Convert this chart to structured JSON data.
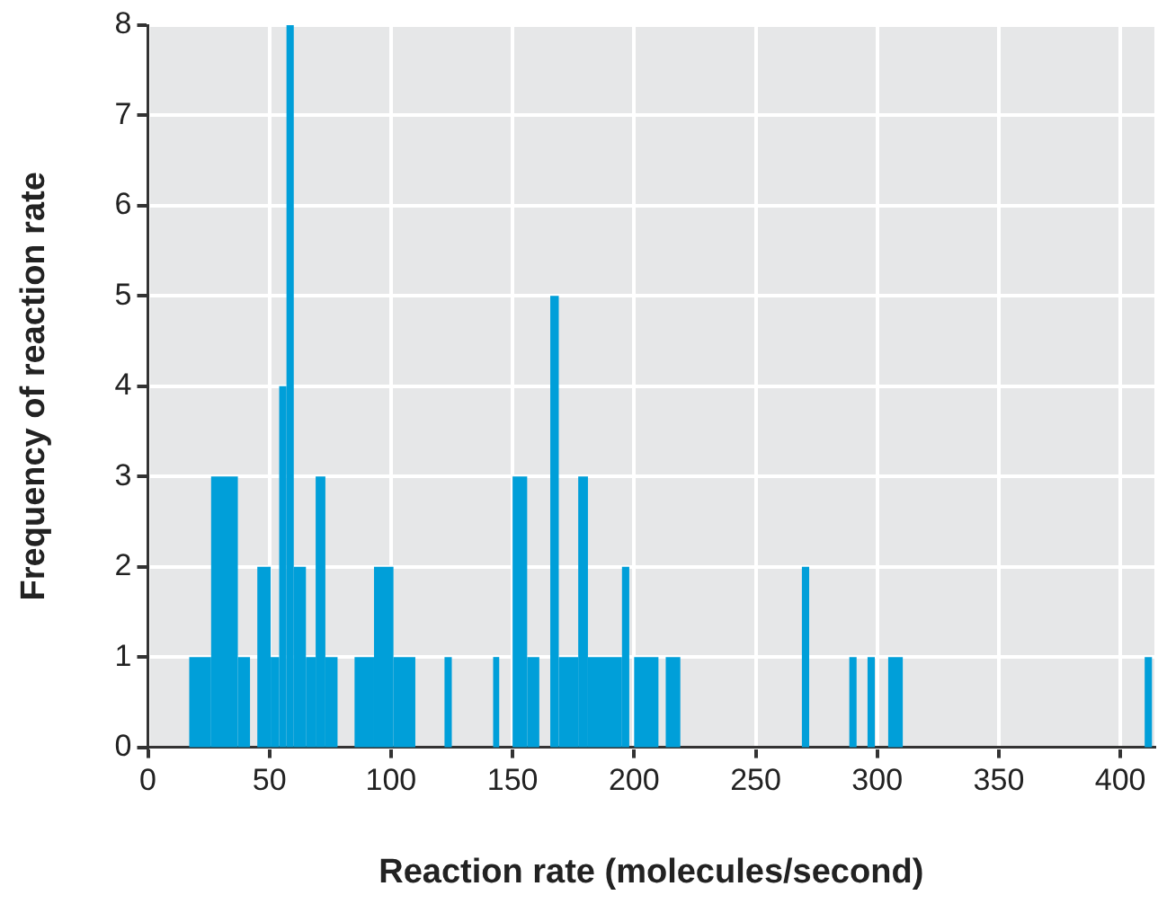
{
  "chart_data": {
    "type": "histogram",
    "xlabel": "Reaction rate (molecules/second)",
    "ylabel": "Frequency of reaction rate",
    "bins": [
      17,
      26,
      37,
      42,
      45,
      50.5,
      54,
      57,
      60,
      65,
      69,
      73,
      78,
      85,
      93,
      101,
      110,
      122,
      125,
      142,
      144.5,
      150,
      156,
      161,
      165.5,
      169,
      177,
      181,
      195,
      198,
      200,
      210,
      213,
      219,
      269,
      272,
      288.5,
      291.5,
      296,
      299,
      304.5,
      310.5,
      410,
      413
    ],
    "values": [
      1,
      3,
      1,
      0,
      2,
      1,
      4,
      8,
      2,
      1,
      3,
      1,
      0,
      1,
      2,
      1,
      0,
      1,
      0,
      1,
      0,
      3,
      1,
      0,
      5,
      1,
      3,
      1,
      2,
      0,
      1,
      0,
      1,
      0,
      2,
      0,
      1,
      0,
      1,
      0,
      1,
      0,
      1
    ],
    "color": "#009fd9",
    "xlim": [
      0,
      414
    ],
    "xticks": [
      0,
      50,
      100,
      150,
      200,
      250,
      300,
      350,
      400
    ],
    "ylim": [
      0,
      8
    ],
    "yticks": [
      0,
      1,
      2,
      3,
      4,
      5,
      6,
      7,
      8
    ],
    "grid": true,
    "legend": false
  }
}
